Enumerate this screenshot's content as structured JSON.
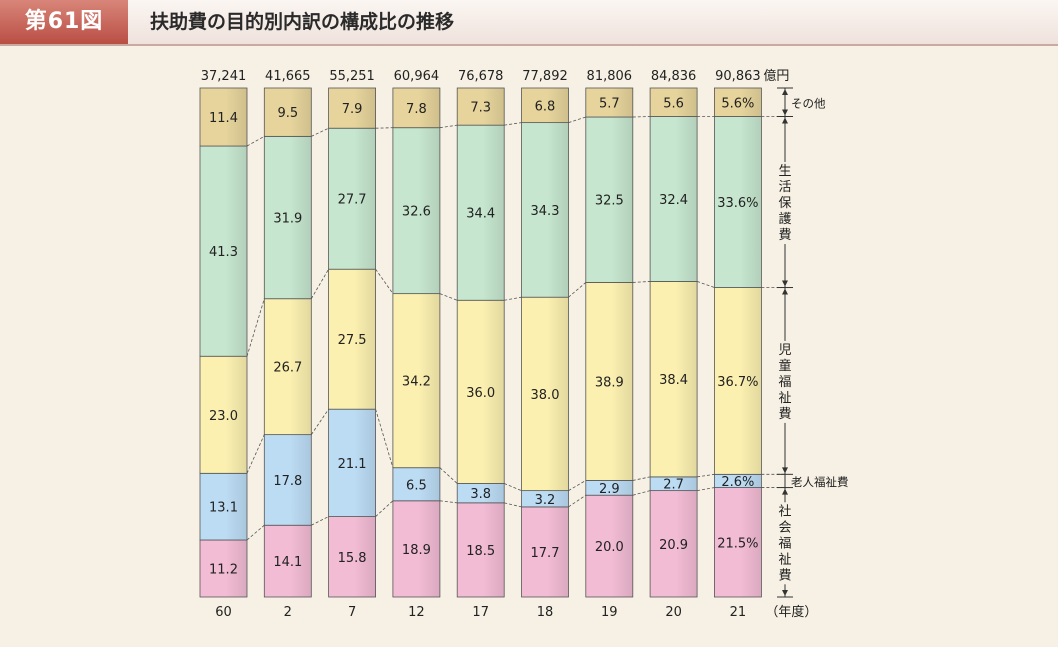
{
  "header": {
    "figure_label": "第61図",
    "title": "扶助費の目的別内訳の構成比の推移"
  },
  "chart_data": {
    "type": "stacked-bar-100",
    "categories": [
      "60",
      "2",
      "7",
      "12",
      "17",
      "18",
      "19",
      "20",
      "21"
    ],
    "x_unit_label": "（年度）",
    "totals": [
      "37,241",
      "41,665",
      "55,251",
      "60,964",
      "76,678",
      "77,892",
      "81,806",
      "84,836",
      "90,863"
    ],
    "total_unit": "億円",
    "ylim": [
      0,
      100
    ],
    "series": [
      {
        "name": "社会福祉費",
        "color": "#f2bcd4",
        "values": [
          11.2,
          14.1,
          15.8,
          18.9,
          18.5,
          17.7,
          20.0,
          20.9,
          21.5
        ],
        "labels": [
          "11.2",
          "14.1",
          "15.8",
          "18.9",
          "18.5",
          "17.7",
          "20.0",
          "20.9",
          "21.5%"
        ]
      },
      {
        "name": "老人福祉費",
        "color": "#bcdcf4",
        "values": [
          13.1,
          17.8,
          21.1,
          6.5,
          3.8,
          3.2,
          2.9,
          2.7,
          2.6
        ],
        "labels": [
          "13.1",
          "17.8",
          "21.1",
          "6.5",
          "3.8",
          "3.2",
          "2.9",
          "2.7",
          "2.6%"
        ]
      },
      {
        "name": "児童福祉費",
        "color": "#fbf0b0",
        "values": [
          23.0,
          26.7,
          27.5,
          34.2,
          36.0,
          38.0,
          38.9,
          38.4,
          36.7
        ],
        "labels": [
          "23.0",
          "26.7",
          "27.5",
          "34.2",
          "36.0",
          "38.0",
          "38.9",
          "38.4",
          "36.7%"
        ]
      },
      {
        "name": "生活保護費",
        "color": "#c6e6cf",
        "values": [
          41.3,
          31.9,
          27.7,
          32.6,
          34.4,
          34.3,
          32.5,
          32.4,
          33.6
        ],
        "labels": [
          "41.3",
          "31.9",
          "27.7",
          "32.6",
          "34.4",
          "34.3",
          "32.5",
          "32.4",
          "33.6%"
        ]
      },
      {
        "name": "その他",
        "color": "#e6d49c",
        "values": [
          11.4,
          9.5,
          7.9,
          7.8,
          7.3,
          6.8,
          5.7,
          5.6,
          5.6
        ],
        "labels": [
          "11.4",
          "9.5",
          "7.9",
          "7.8",
          "7.3",
          "6.8",
          "5.7",
          "5.6",
          "5.6%"
        ]
      }
    ]
  }
}
